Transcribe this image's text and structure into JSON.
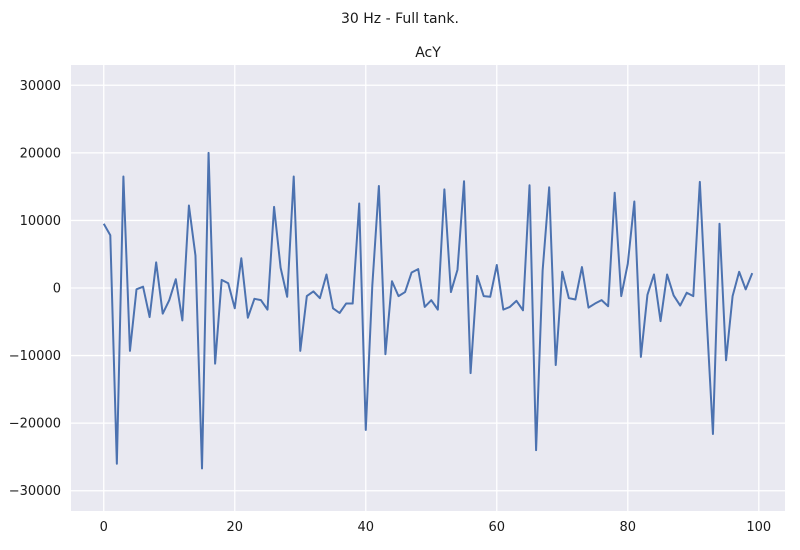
{
  "figure": {
    "suptitle": "30 Hz - Full tank.",
    "background": "#ffffff",
    "plot_background": "#e9e9f1",
    "line_color": "#4c72b0"
  },
  "chart_data": {
    "type": "line",
    "title": "AcY",
    "xlabel": "",
    "ylabel": "",
    "xlim": [
      -5,
      104
    ],
    "ylim": [
      -33000,
      33000
    ],
    "x_ticks": [
      0,
      20,
      40,
      60,
      80,
      100
    ],
    "x_tick_labels": [
      "0",
      "20",
      "40",
      "60",
      "80",
      "100"
    ],
    "y_ticks": [
      -30000,
      -20000,
      -10000,
      0,
      10000,
      20000,
      30000
    ],
    "y_tick_labels": [
      "−30000",
      "−20000",
      "−10000",
      "0",
      "10000",
      "20000",
      "30000"
    ],
    "grid": true,
    "series": [
      {
        "name": "AcY",
        "x": [
          0,
          1,
          2,
          3,
          4,
          5,
          6,
          7,
          8,
          9,
          10,
          11,
          12,
          13,
          14,
          15,
          16,
          17,
          18,
          19,
          20,
          21,
          22,
          23,
          24,
          25,
          26,
          27,
          28,
          29,
          30,
          31,
          32,
          33,
          34,
          35,
          36,
          37,
          38,
          39,
          40,
          41,
          42,
          43,
          44,
          45,
          46,
          47,
          48,
          49,
          50,
          51,
          52,
          53,
          54,
          55,
          56,
          57,
          58,
          59,
          60,
          61,
          62,
          63,
          64,
          65,
          66,
          67,
          68,
          69,
          70,
          71,
          72,
          73,
          74,
          75,
          76,
          77,
          78,
          79,
          80,
          81,
          82,
          83,
          84,
          85,
          86,
          87,
          88,
          89,
          90,
          91,
          92,
          93,
          94,
          95,
          96,
          97,
          98,
          99
        ],
        "values": [
          9500,
          7800,
          -26000,
          16500,
          -9300,
          -200,
          200,
          -4300,
          3800,
          -3800,
          -1800,
          1300,
          -4800,
          12200,
          4800,
          -26700,
          20000,
          -11200,
          1200,
          700,
          -3000,
          4400,
          -4400,
          -1600,
          -1800,
          -3200,
          12000,
          3000,
          -1300,
          16500,
          -9300,
          -1200,
          -500,
          -1500,
          2000,
          -3000,
          -3700,
          -2300,
          -2300,
          12500,
          -21000,
          400,
          15100,
          -9800,
          1000,
          -1200,
          -600,
          2300,
          2800,
          -2800,
          -1800,
          -3200,
          14600,
          -600,
          2700,
          15800,
          -12600,
          1800,
          -1200,
          -1300,
          3400,
          -3200,
          -2800,
          -1900,
          -3300,
          15200,
          -24000,
          2600,
          14900,
          -11400,
          2400,
          -1500,
          -1700,
          3100,
          -2900,
          -2300,
          -1800,
          -2700,
          14100,
          -1200,
          3600,
          12800,
          -10200,
          -1000,
          2000,
          -4900,
          2000,
          -1100,
          -2600,
          -700,
          -1200,
          15700,
          -3700,
          -21600,
          9500,
          -10700,
          -1200,
          2400,
          -200,
          2200
        ]
      }
    ]
  }
}
